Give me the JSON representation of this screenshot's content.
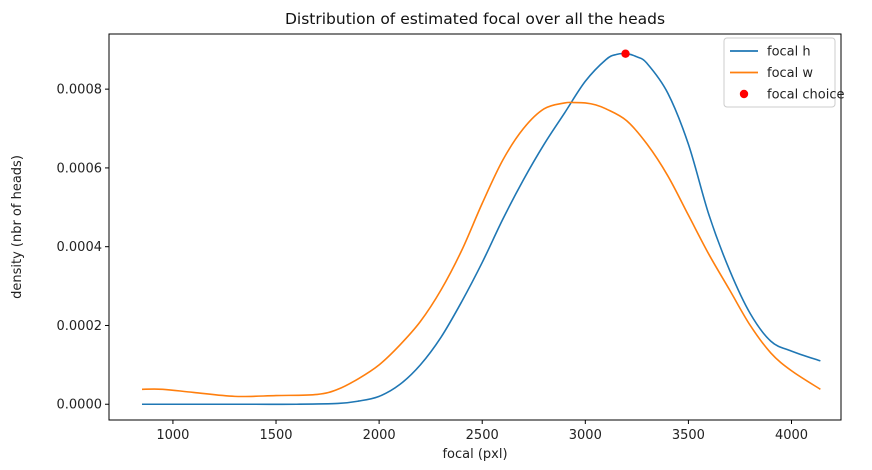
{
  "chart_data": {
    "type": "line",
    "title": "Distribution of estimated focal over all the heads",
    "xlabel": "focal (pxl)",
    "ylabel": "density (nbr of heads)",
    "xlim": [
      690,
      4240
    ],
    "ylim": [
      -4e-05,
      0.00094
    ],
    "x_ticks": [
      1000,
      1500,
      2000,
      2500,
      3000,
      3500,
      4000
    ],
    "x_tick_labels": [
      "1000",
      "1500",
      "2000",
      "2500",
      "3000",
      "3500",
      "4000"
    ],
    "y_ticks": [
      0,
      0.0002,
      0.0004,
      0.0006,
      0.0008
    ],
    "y_tick_labels": [
      "0.0000",
      "0.0002",
      "0.0004",
      "0.0006",
      "0.0008"
    ],
    "legend_position": "top-right",
    "series": [
      {
        "name": "focal h",
        "color": "#1f77b4",
        "x": [
          850,
          1000,
          1200,
          1400,
          1600,
          1800,
          1900,
          2000,
          2100,
          2200,
          2300,
          2400,
          2500,
          2600,
          2700,
          2800,
          2900,
          3000,
          3100,
          3150,
          3200,
          3250,
          3300,
          3400,
          3500,
          3600,
          3700,
          3800,
          3900,
          4000,
          4140
        ],
        "y": [
          0.0,
          0.0,
          0.0,
          0.0,
          0.0,
          2e-06,
          8e-06,
          2e-05,
          5e-05,
          0.0001,
          0.00017,
          0.00026,
          0.00036,
          0.00047,
          0.00057,
          0.00066,
          0.00074,
          0.00082,
          0.000875,
          0.000888,
          0.00089,
          0.000882,
          0.000865,
          0.00079,
          0.00066,
          0.00048,
          0.00034,
          0.00023,
          0.00016,
          0.000135,
          0.00011
        ]
      },
      {
        "name": "focal w",
        "color": "#ff7f0e",
        "x": [
          850,
          950,
          1100,
          1300,
          1500,
          1700,
          1800,
          1900,
          2000,
          2100,
          2200,
          2300,
          2400,
          2500,
          2600,
          2700,
          2800,
          2900,
          2950,
          3000,
          3050,
          3100,
          3200,
          3300,
          3400,
          3500,
          3600,
          3700,
          3800,
          3900,
          4000,
          4140
        ],
        "y": [
          3.8e-05,
          3.8e-05,
          3e-05,
          2e-05,
          2.2e-05,
          2.5e-05,
          3.8e-05,
          6.5e-05,
          0.0001,
          0.00015,
          0.00021,
          0.00029,
          0.00039,
          0.00051,
          0.00062,
          0.0007,
          0.00075,
          0.000765,
          0.000766,
          0.000765,
          0.00076,
          0.00075,
          0.00072,
          0.00066,
          0.00058,
          0.00048,
          0.00038,
          0.00029,
          0.0002,
          0.00013,
          8.5e-05,
          3.8e-05
        ]
      },
      {
        "name": "focal choice",
        "color": "#ff0000",
        "marker": "circle",
        "x": [
          3195
        ],
        "y": [
          0.00089
        ]
      }
    ]
  }
}
